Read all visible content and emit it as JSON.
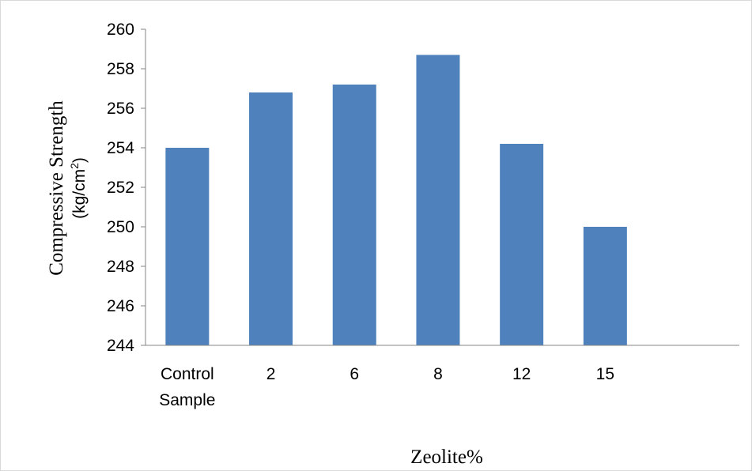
{
  "chart_data": {
    "type": "bar",
    "categories": [
      [
        "Control",
        "Sample"
      ],
      [
        "2"
      ],
      [
        "6"
      ],
      [
        "8"
      ],
      [
        "12"
      ],
      [
        "15"
      ]
    ],
    "values": [
      254.0,
      256.8,
      257.2,
      258.7,
      254.2,
      250.0
    ],
    "xlabel": "Zeolite%",
    "ylabel_line1": "Compressive Strength",
    "ylabel_line2_base": "(kg/cm",
    "ylabel_line2_sup": "2",
    "ylabel_line2_end": ")",
    "ylim": [
      244,
      260
    ],
    "yticks": [
      244,
      246,
      248,
      250,
      252,
      254,
      256,
      258,
      260
    ],
    "grid": false,
    "legend": "none",
    "bar_color": "#4f81bd"
  }
}
